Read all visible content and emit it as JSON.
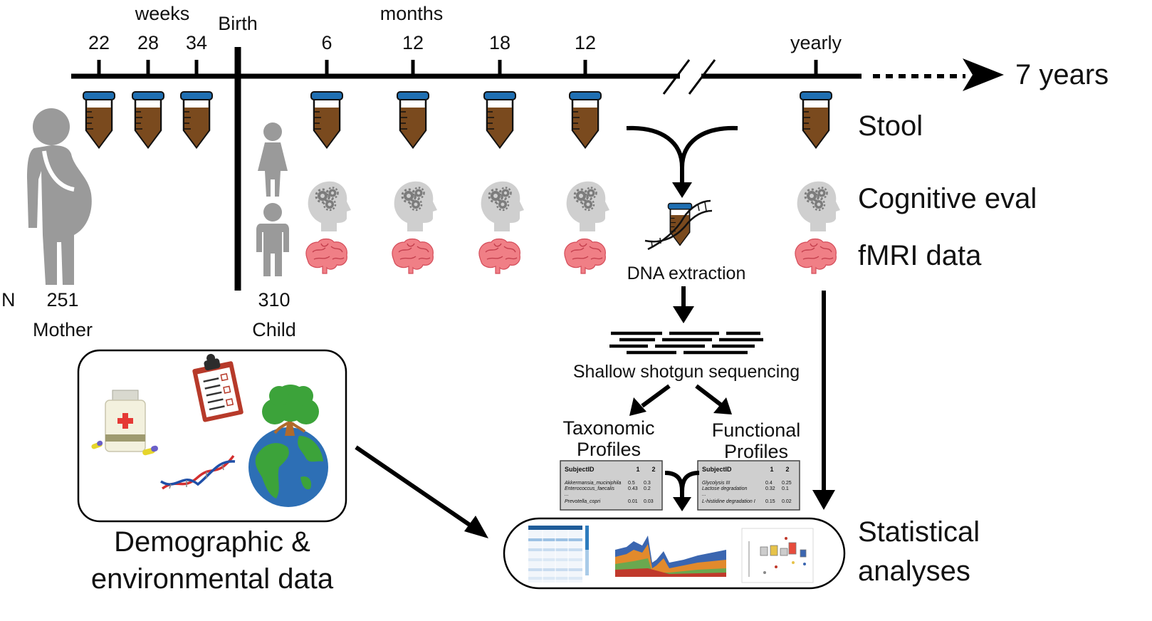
{
  "timeline": {
    "weeks_label": "weeks",
    "months_label": "months",
    "birth_label": "Birth",
    "week_ticks": [
      "22",
      "28",
      "34"
    ],
    "month_ticks": [
      "6",
      "12",
      "18",
      "12"
    ],
    "yearly_label": "yearly",
    "end_label": "7 years"
  },
  "rows": {
    "stool": "Stool",
    "cognitive": "Cognitive eval",
    "fmri": "fMRI data"
  },
  "cohort": {
    "n_label": "N",
    "mother_n": "251",
    "mother_label": "Mother",
    "child_n": "310",
    "child_label": "Child"
  },
  "pipeline": {
    "dna_extraction": "DNA extraction",
    "sequencing": "Shallow shotgun sequencing",
    "taxonomic_line1": "Taxonomic",
    "taxonomic_line2": "Profiles",
    "functional_line1": "Functional",
    "functional_line2": "Profiles"
  },
  "taxonomic_table": {
    "header": "SubjectID",
    "cols": [
      "1",
      "2"
    ],
    "rows": [
      {
        "name": "Akkermansia_muciniphila",
        "v1": "0.5",
        "v2": "0.3"
      },
      {
        "name": "Enterococcus_faecalis",
        "v1": "0.43",
        "v2": "0.2"
      },
      {
        "name": "...",
        "v1": "",
        "v2": ""
      },
      {
        "name": "Prevotella_copri",
        "v1": "0.01",
        "v2": "0.03"
      }
    ]
  },
  "functional_table": {
    "header": "SubjectID",
    "cols": [
      "1",
      "2"
    ],
    "rows": [
      {
        "name": "Glycolysis III",
        "v1": "0.4",
        "v2": "0.25"
      },
      {
        "name": "Lactose degradation",
        "v1": "0.32",
        "v2": "0.1"
      },
      {
        "name": "...",
        "v1": "",
        "v2": ""
      },
      {
        "name": "L-histidine degradation I",
        "v1": "0.15",
        "v2": "0.02"
      }
    ]
  },
  "demographic": {
    "line1": "Demographic &",
    "line2": "environmental data"
  },
  "statistical": {
    "line1": "Statistical",
    "line2": "analyses"
  },
  "colors": {
    "stool_brown": "#7a4a1e",
    "tube_cap": "#1f6fb2",
    "head_gray": "#cfcfcf",
    "person_gray": "#9a9a9a",
    "brain_pink": "#f07f86",
    "globe_blue": "#2d6fb5",
    "land_green": "#3ca33a"
  }
}
